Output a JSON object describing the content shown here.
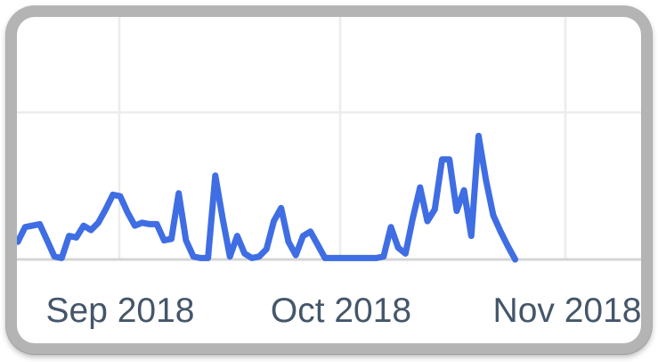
{
  "card": {
    "kind": "interest-over-time-trend-card"
  },
  "styles": {
    "line_color": "#3F6DE3",
    "frame_color": "#B4B4B4",
    "gridline_color": "#ECECEC",
    "baseline_color": "#D4D4D4",
    "label_color": "#44566A",
    "background": "#FFFFFF"
  },
  "chart_data": {
    "type": "line",
    "title": "",
    "xlabel": "",
    "ylabel": "",
    "x_tick_labels": [
      "Sep 2018",
      "Oct 2018",
      "Nov 2018"
    ],
    "x_start_date": "2018-08-18",
    "x_end_date": "2018-10-25",
    "x_interval": "daily",
    "ylim": [
      0,
      100
    ],
    "grid": true,
    "legend": false,
    "y_tick_labels_visible": false,
    "series": [
      {
        "name": "interest-over-time",
        "values": [
          12,
          22,
          23,
          24,
          13,
          2,
          1,
          16,
          15,
          23,
          20,
          25,
          34,
          44,
          43,
          32,
          23,
          25,
          24,
          24,
          13,
          14,
          45,
          13,
          2,
          1,
          1,
          57,
          28,
          2,
          16,
          4,
          1,
          2,
          7,
          26,
          35,
          12,
          3,
          16,
          19,
          10,
          1,
          1,
          1,
          1,
          1,
          1,
          1,
          1,
          2,
          22,
          8,
          4,
          28,
          49,
          26,
          34,
          68,
          68,
          33,
          47,
          16,
          84,
          54,
          30,
          19,
          9,
          0
        ]
      }
    ]
  }
}
